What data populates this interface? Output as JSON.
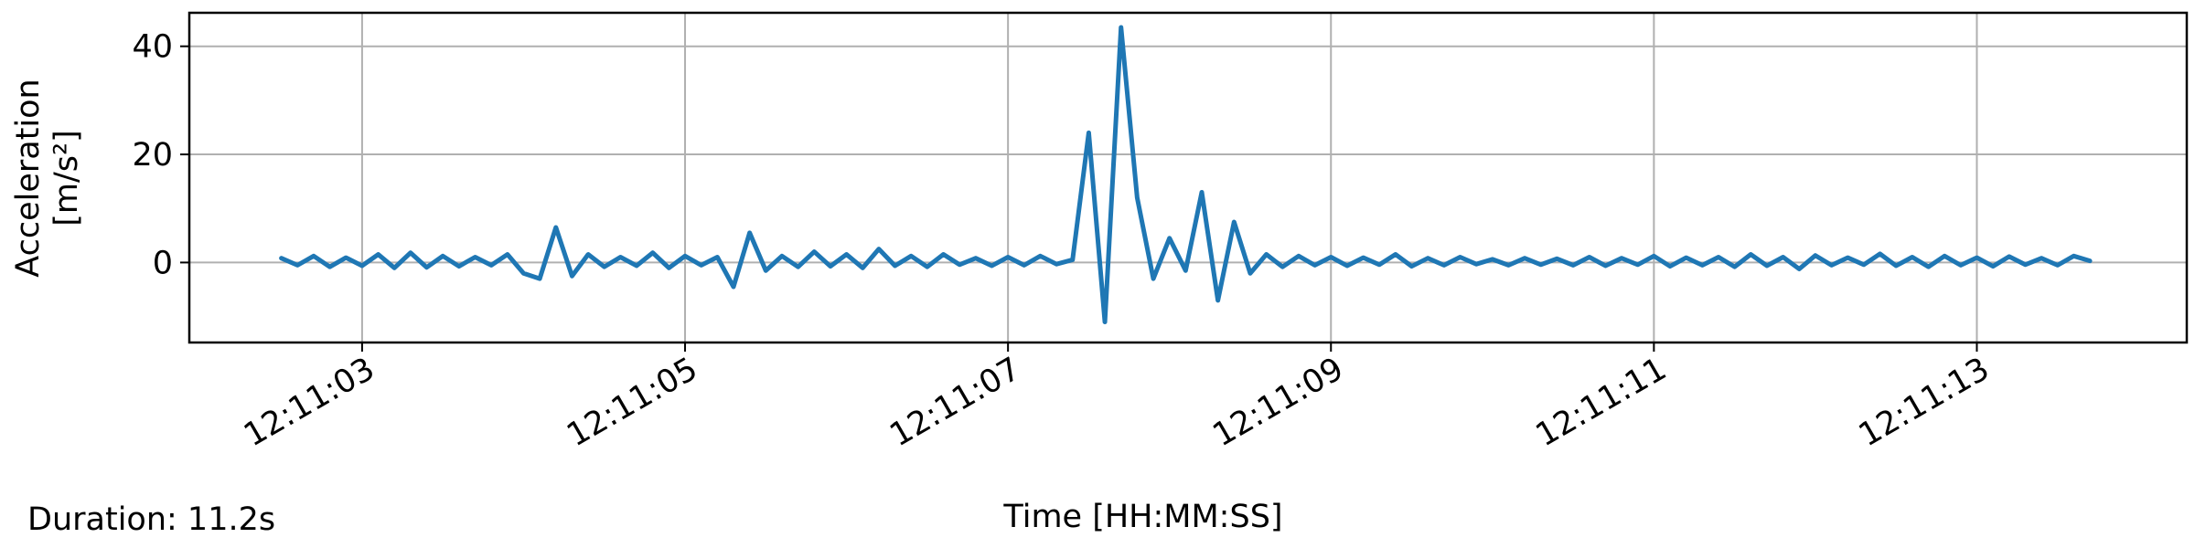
{
  "chart_data": {
    "type": "line",
    "xlabel": "Time [HH:MM:SS]",
    "ylabel": [
      "Acceleration",
      "[m/s²]"
    ],
    "annotation": "Duration: 11.2s",
    "color": "#1f77b4",
    "grid": true,
    "xlim": [
      "12:11:01.93",
      "12:11:14.30"
    ],
    "xticks": [
      "12:11:03",
      "12:11:05",
      "12:11:07",
      "12:11:09",
      "12:11:11",
      "12:11:13"
    ],
    "ylim": [
      -14.8,
      46.2
    ],
    "yticks": [
      0,
      20,
      40
    ],
    "x": [
      "12:11:02.5",
      "12:11:02.6",
      "12:11:02.7",
      "12:11:02.8",
      "12:11:02.9",
      "12:11:03.0",
      "12:11:03.1",
      "12:11:03.2",
      "12:11:03.3",
      "12:11:03.4",
      "12:11:03.5",
      "12:11:03.6",
      "12:11:03.7",
      "12:11:03.8",
      "12:11:03.9",
      "12:11:04.0",
      "12:11:04.1",
      "12:11:04.2",
      "12:11:04.3",
      "12:11:04.4",
      "12:11:04.5",
      "12:11:04.6",
      "12:11:04.7",
      "12:11:04.8",
      "12:11:04.9",
      "12:11:05.0",
      "12:11:05.1",
      "12:11:05.2",
      "12:11:05.3",
      "12:11:05.4",
      "12:11:05.5",
      "12:11:05.6",
      "12:11:05.7",
      "12:11:05.8",
      "12:11:05.9",
      "12:11:06.0",
      "12:11:06.1",
      "12:11:06.2",
      "12:11:06.3",
      "12:11:06.4",
      "12:11:06.5",
      "12:11:06.6",
      "12:11:06.7",
      "12:11:06.8",
      "12:11:06.9",
      "12:11:07.0",
      "12:11:07.1",
      "12:11:07.2",
      "12:11:07.3",
      "12:11:07.4",
      "12:11:07.5",
      "12:11:07.6",
      "12:11:07.7",
      "12:11:07.8",
      "12:11:07.9",
      "12:11:08.0",
      "12:11:08.1",
      "12:11:08.2",
      "12:11:08.3",
      "12:11:08.4",
      "12:11:08.5",
      "12:11:08.6",
      "12:11:08.7",
      "12:11:08.8",
      "12:11:08.9",
      "12:11:09.0",
      "12:11:09.1",
      "12:11:09.2",
      "12:11:09.3",
      "12:11:09.4",
      "12:11:09.5",
      "12:11:09.6",
      "12:11:09.7",
      "12:11:09.8",
      "12:11:09.9",
      "12:11:10.0",
      "12:11:10.1",
      "12:11:10.2",
      "12:11:10.3",
      "12:11:10.4",
      "12:11:10.5",
      "12:11:10.6",
      "12:11:10.7",
      "12:11:10.8",
      "12:11:10.9",
      "12:11:11.0",
      "12:11:11.1",
      "12:11:11.2",
      "12:11:11.3",
      "12:11:11.4",
      "12:11:11.5",
      "12:11:11.6",
      "12:11:11.7",
      "12:11:11.8",
      "12:11:11.9",
      "12:11:12.0",
      "12:11:12.1",
      "12:11:12.2",
      "12:11:12.3",
      "12:11:12.4",
      "12:11:12.5",
      "12:11:12.6",
      "12:11:12.7",
      "12:11:12.8",
      "12:11:12.9",
      "12:11:13.0",
      "12:11:13.1",
      "12:11:13.2",
      "12:11:13.3",
      "12:11:13.4",
      "12:11:13.5",
      "12:11:13.6",
      "12:11:13.7"
    ],
    "values": [
      0.8,
      -0.5,
      1.2,
      -0.8,
      0.9,
      -0.6,
      1.5,
      -1.0,
      1.8,
      -0.9,
      1.2,
      -0.7,
      1.0,
      -0.5,
      1.5,
      -2.0,
      -3.0,
      6.5,
      -2.5,
      1.5,
      -0.8,
      1.0,
      -0.6,
      1.8,
      -1.0,
      1.2,
      -0.5,
      1.0,
      -4.5,
      5.5,
      -1.5,
      1.2,
      -0.8,
      2.0,
      -0.7,
      1.5,
      -1.0,
      2.5,
      -0.6,
      1.2,
      -0.8,
      1.5,
      -0.4,
      0.8,
      -0.6,
      1.0,
      -0.5,
      1.2,
      -0.3,
      0.5,
      24.0,
      -11.0,
      43.5,
      12.0,
      -3.0,
      4.5,
      -1.5,
      13.0,
      -7.0,
      7.5,
      -2.0,
      1.5,
      -0.8,
      1.2,
      -0.5,
      1.0,
      -0.6,
      0.9,
      -0.4,
      1.5,
      -0.7,
      0.8,
      -0.5,
      1.0,
      -0.3,
      0.6,
      -0.5,
      0.8,
      -0.4,
      0.7,
      -0.5,
      1.0,
      -0.6,
      0.8,
      -0.4,
      1.2,
      -0.7,
      0.9,
      -0.5,
      1.0,
      -0.8,
      1.5,
      -0.6,
      1.0,
      -1.2,
      1.3,
      -0.5,
      0.9,
      -0.4,
      1.6,
      -0.6,
      1.0,
      -0.8,
      1.2,
      -0.5,
      0.9,
      -0.7,
      1.1,
      -0.4,
      0.8,
      -0.5,
      1.2,
      0.3
    ]
  }
}
